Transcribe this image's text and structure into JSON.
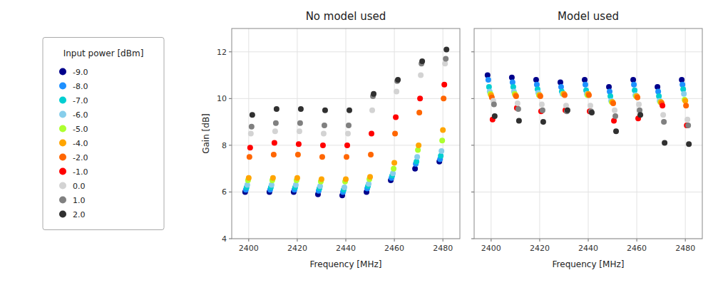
{
  "chart_data": [
    {
      "type": "scatter",
      "title": "No model used",
      "xlabel": "Frequency [MHz]",
      "ylabel": "Gain [dB]",
      "legend": "left",
      "legend_title": "Input power [dBm]",
      "x": [
        2400,
        2410,
        2420,
        2430,
        2440,
        2450,
        2460,
        2470,
        2480
      ],
      "series": [
        {
          "name": "-9.0",
          "color": "#00008B",
          "values": [
            6.0,
            6.0,
            6.0,
            5.9,
            5.85,
            6.0,
            6.5,
            7.0,
            7.3
          ]
        },
        {
          "name": "-8.0",
          "color": "#1E90FF",
          "values": [
            6.1,
            6.1,
            6.1,
            6.05,
            6.0,
            6.15,
            6.6,
            7.2,
            7.4
          ]
        },
        {
          "name": "-7.0",
          "color": "#00CED1",
          "values": [
            6.2,
            6.2,
            6.2,
            6.15,
            6.1,
            6.25,
            6.7,
            7.3,
            7.55
          ]
        },
        {
          "name": "-6.0",
          "color": "#87CEEB",
          "values": [
            6.3,
            6.3,
            6.3,
            6.25,
            6.2,
            6.35,
            6.8,
            7.5,
            7.75
          ]
        },
        {
          "name": "-5.0",
          "color": "#ADFF2F",
          "values": [
            6.5,
            6.5,
            6.5,
            6.45,
            6.45,
            6.55,
            7.0,
            7.8,
            8.2
          ]
        },
        {
          "name": "-4.0",
          "color": "#FFA500",
          "values": [
            6.6,
            6.6,
            6.6,
            6.55,
            6.55,
            6.65,
            7.25,
            8.0,
            8.65
          ]
        },
        {
          "name": "-2.0",
          "color": "#FF6600",
          "values": [
            7.5,
            7.6,
            7.6,
            7.5,
            7.5,
            7.6,
            8.5,
            9.4,
            10.0
          ]
        },
        {
          "name": "-1.0",
          "color": "#FF0000",
          "values": [
            7.9,
            8.1,
            8.05,
            8.0,
            8.0,
            8.5,
            9.2,
            10.0,
            10.6
          ]
        },
        {
          "name": "0.0",
          "color": "#D3D3D3",
          "values": [
            8.5,
            8.6,
            8.6,
            8.5,
            8.5,
            9.5,
            10.3,
            11.0,
            11.5
          ]
        },
        {
          "name": "1.0",
          "color": "#808080",
          "values": [
            8.8,
            8.95,
            8.95,
            8.85,
            8.85,
            10.1,
            10.75,
            11.5,
            11.7
          ]
        },
        {
          "name": "2.0",
          "color": "#303030",
          "values": [
            9.3,
            9.55,
            9.55,
            9.5,
            9.5,
            10.2,
            10.8,
            11.6,
            12.1
          ]
        }
      ],
      "xlim": [
        2393,
        2487
      ],
      "ylim": [
        4,
        13
      ],
      "xticks": [
        2400,
        2420,
        2440,
        2460,
        2480
      ],
      "yticks": [
        4,
        6,
        8,
        10,
        12
      ],
      "grid": true
    },
    {
      "type": "scatter",
      "title": "Model used",
      "xlabel": "Frequency [MHz]",
      "x": [
        2400,
        2410,
        2420,
        2430,
        2440,
        2450,
        2460,
        2470,
        2480
      ],
      "series": [
        {
          "color": "#00008B",
          "values": [
            11.0,
            10.9,
            10.8,
            10.7,
            10.8,
            10.5,
            10.8,
            10.5,
            10.8
          ]
        },
        {
          "color": "#1E90FF",
          "values": [
            10.8,
            10.7,
            10.6,
            10.5,
            10.6,
            10.3,
            10.6,
            10.3,
            10.6
          ]
        },
        {
          "color": "#00CED1",
          "values": [
            10.5,
            10.5,
            10.4,
            10.3,
            10.35,
            10.1,
            10.35,
            10.1,
            10.4
          ]
        },
        {
          "color": "#87CEEB",
          "values": [
            10.3,
            10.3,
            10.25,
            10.2,
            10.2,
            9.9,
            10.15,
            9.9,
            10.2
          ]
        },
        {
          "color": "#ADFF2F",
          "values": [
            10.2,
            10.2,
            10.15,
            10.2,
            10.15,
            9.85,
            10.1,
            9.85,
            9.95
          ]
        },
        {
          "color": "#FFA500",
          "values": [
            10.15,
            10.15,
            10.15,
            10.2,
            10.2,
            9.85,
            10.1,
            9.85,
            9.9
          ]
        },
        {
          "color": "#FF6600",
          "values": [
            10.05,
            10.1,
            10.1,
            10.15,
            10.15,
            9.8,
            10.05,
            9.8,
            9.7
          ]
        },
        {
          "color": "#FF0000",
          "values": [
            9.1,
            9.6,
            9.45,
            9.5,
            9.45,
            9.05,
            9.15,
            9.7,
            8.85
          ]
        },
        {
          "color": "#D3D3D3",
          "values": [
            9.9,
            9.8,
            9.75,
            9.7,
            9.7,
            9.5,
            9.75,
            9.3,
            9.1
          ]
        },
        {
          "color": "#808080",
          "values": [
            9.75,
            9.55,
            9.5,
            9.45,
            9.45,
            9.25,
            9.5,
            9.0,
            8.85
          ]
        },
        {
          "color": "#303030",
          "values": [
            9.25,
            9.05,
            9.0,
            9.5,
            9.4,
            8.6,
            9.3,
            8.1,
            8.05
          ]
        }
      ],
      "xlim": [
        2393,
        2487
      ],
      "ylim": [
        4,
        13
      ],
      "xticks": [
        2400,
        2420,
        2440,
        2460,
        2480
      ],
      "yticks": [
        4,
        6,
        8,
        10,
        12
      ],
      "grid": true,
      "tick_labels": "x"
    }
  ]
}
